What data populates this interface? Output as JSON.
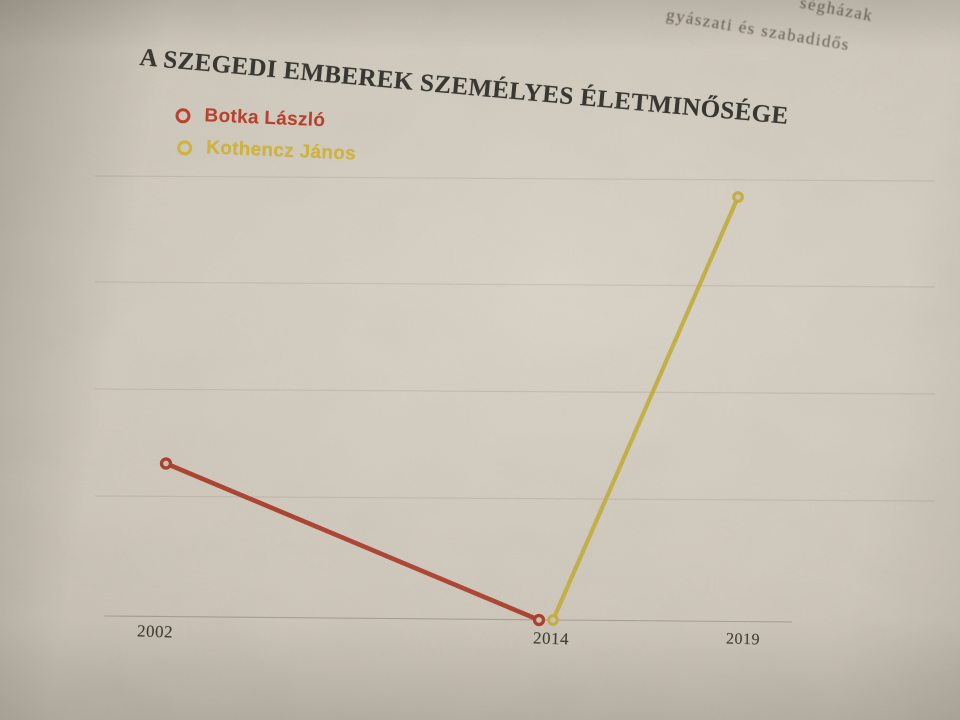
{
  "page": {
    "description": "photograph of a printed book page",
    "top_fragments": [
      {
        "text": "ségházak"
      },
      {
        "text": "gyászati és szabadidős"
      }
    ]
  },
  "chart": {
    "title": "A SZEGEDI EMBEREK SZEMÉLYES ÉLETMINŐSÉGE",
    "legend": [
      {
        "label": "Botka László",
        "color": "#b93a26"
      },
      {
        "label": "Kothencz János",
        "color": "#d2b42f"
      }
    ],
    "x_ticks": [
      "2002",
      "2014",
      "2019"
    ]
  },
  "chart_data": {
    "type": "line",
    "title": "A SZEGEDI EMBEREK SZEMÉLYES ÉLETMINŐSÉGE",
    "categories": [
      "2002",
      "2014",
      "2019"
    ],
    "series": [
      {
        "name": "Botka László",
        "color": "#ab3926",
        "x": [
          "2002",
          "2014"
        ],
        "values": [
          37,
          0
        ]
      },
      {
        "name": "Kothencz János",
        "color": "#c2ae3d",
        "x": [
          "2014",
          "2019"
        ],
        "values": [
          0,
          100
        ]
      }
    ],
    "xlabel": "",
    "ylabel": "",
    "y_axis_visible": false,
    "value_scale": "relative 0-100, no printed y scale",
    "legend_position": "top-left",
    "grid": "very faint horizontal lines",
    "marker": "open-circle"
  },
  "colors": {
    "paper": "#cdc6b9",
    "title_ink": "#32302a",
    "tick_ink": "#3a372d",
    "axis_line": "#7d7668"
  }
}
